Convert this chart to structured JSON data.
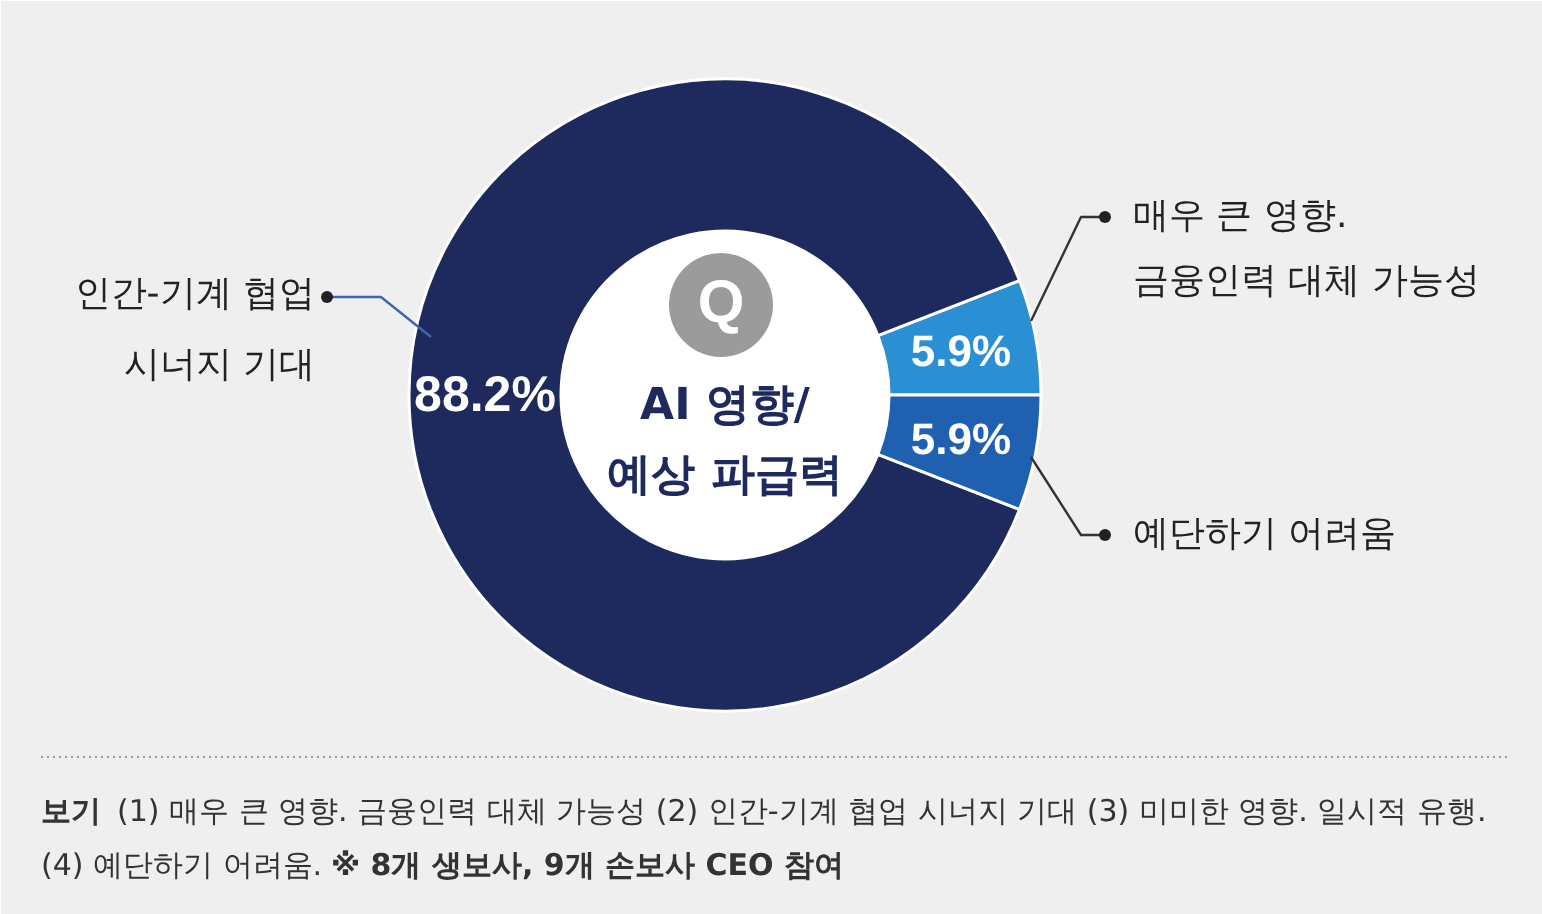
{
  "chart_data": {
    "type": "donut",
    "title": "AI 영향/\n예상 파급력",
    "categories": [
      "매우 큰 영향.\n금융인력 대체 가능성",
      "인간-기계 협업\n시너지 기대",
      "예단하기 어려움"
    ],
    "values": [
      5.9,
      88.2,
      5.9
    ],
    "colors": [
      "#2b8fd3",
      "#1e2a5e",
      "#2060b0"
    ],
    "value_labels": [
      "5.9%",
      "88.2%",
      "5.9%"
    ],
    "annotations": [
      "Q",
      "보기",
      "(1) 매우 큰 영향. 금융인력 대체 가능성 (2) 인간-기계 협업 시너지 기대 (3) 미미한 영향. 일시적 유행.",
      "(4) 예단하기 어려움.",
      "※ 8개 생보사, 9개 손보사 CEO 참여"
    ]
  }
}
